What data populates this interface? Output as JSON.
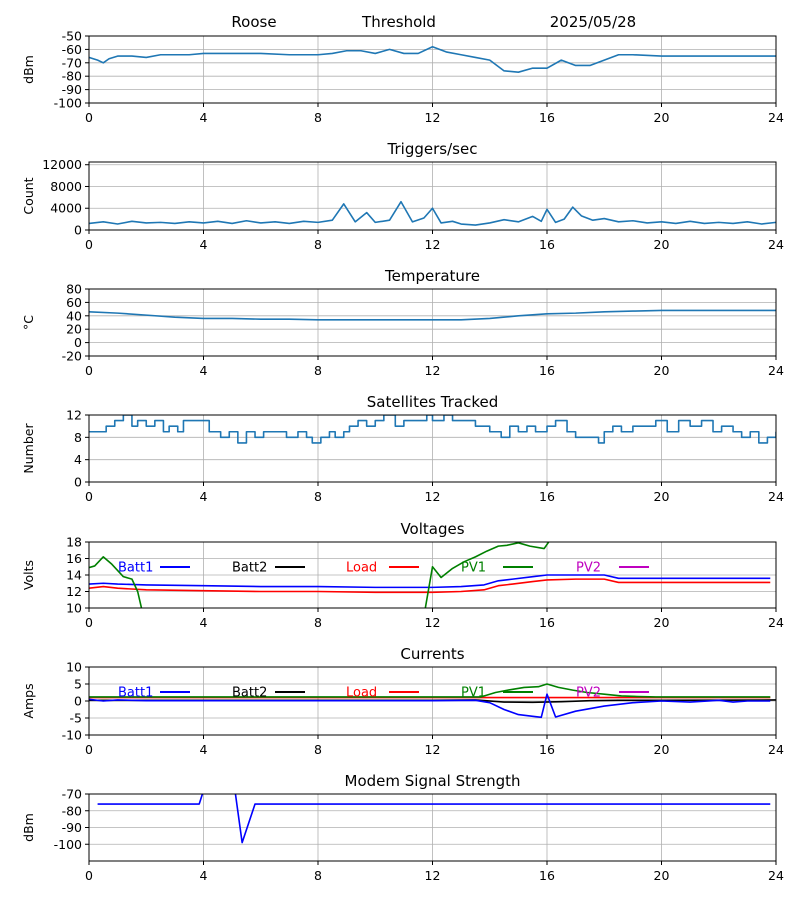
{
  "header": {
    "station": "Roose",
    "mode": "Threshold",
    "date": "2025/05/28"
  },
  "colors": {
    "series": "#1f77b4",
    "batt1": "#0000ff",
    "batt2": "#000000",
    "load": "#ff0000",
    "pv1": "#008000",
    "pv2": "#bf00bf",
    "grid": "#b0b0b0",
    "axis": "#000000"
  },
  "chart_data": [
    {
      "id": "signal",
      "type": "line",
      "title": "",
      "ylabel": "dBm",
      "xlim": [
        0,
        24
      ],
      "ylim": [
        -100,
        -50
      ],
      "xticks": [
        0,
        4,
        8,
        12,
        16,
        20,
        24
      ],
      "yticks": [
        -100,
        -90,
        -80,
        -70,
        -60,
        -50
      ],
      "grid": true,
      "series": [
        {
          "color": "#1f77b4",
          "x": [
            0,
            0.3,
            0.5,
            0.7,
            1.0,
            1.5,
            2,
            2.5,
            3,
            3.5,
            4,
            5,
            6,
            7,
            8,
            8.5,
            9,
            9.5,
            10,
            10.5,
            11,
            11.5,
            12,
            12.5,
            13,
            13.5,
            14,
            14.5,
            15,
            15.5,
            16,
            16.5,
            17,
            17.5,
            18,
            18.5,
            19,
            20,
            21,
            22,
            23,
            24
          ],
          "y": [
            -66,
            -68,
            -70,
            -67,
            -65,
            -65,
            -66,
            -64,
            -64,
            -64,
            -63,
            -63,
            -63,
            -64,
            -64,
            -63,
            -61,
            -61,
            -63,
            -60,
            -63,
            -63,
            -58,
            -62,
            -64,
            -66,
            -68,
            -76,
            -77,
            -74,
            -74,
            -68,
            -72,
            -72,
            -68,
            -64,
            -64,
            -65,
            -65,
            -65,
            -65,
            -65
          ]
        }
      ]
    },
    {
      "id": "triggers",
      "type": "line",
      "title": "Triggers/sec",
      "ylabel": "Count",
      "xlim": [
        0,
        24
      ],
      "ylim": [
        0,
        12500
      ],
      "xticks": [
        0,
        4,
        8,
        12,
        16,
        20,
        24
      ],
      "yticks": [
        0,
        4000,
        8000,
        12000
      ],
      "grid": true,
      "series": [
        {
          "color": "#1f77b4",
          "x": [
            0,
            0.5,
            1,
            1.5,
            2,
            2.5,
            3,
            3.5,
            4,
            4.5,
            5,
            5.5,
            6,
            6.5,
            7,
            7.5,
            8,
            8.5,
            8.9,
            9.3,
            9.7,
            10,
            10.5,
            10.9,
            11.3,
            11.7,
            12,
            12.3,
            12.7,
            13,
            13.5,
            14,
            14.5,
            15,
            15.5,
            15.8,
            16,
            16.3,
            16.6,
            16.9,
            17.2,
            17.6,
            18,
            18.5,
            19,
            19.5,
            20,
            20.5,
            21,
            21.5,
            22,
            22.5,
            23,
            23.5,
            24
          ],
          "y": [
            1200,
            1500,
            1100,
            1600,
            1300,
            1400,
            1200,
            1500,
            1300,
            1600,
            1200,
            1700,
            1300,
            1500,
            1200,
            1600,
            1400,
            1800,
            4800,
            1500,
            3200,
            1400,
            1800,
            5200,
            1500,
            2200,
            4000,
            1300,
            1600,
            1100,
            900,
            1300,
            1900,
            1500,
            2500,
            1600,
            3800,
            1400,
            2000,
            4200,
            2600,
            1800,
            2100,
            1500,
            1700,
            1300,
            1500,
            1200,
            1600,
            1200,
            1400,
            1200,
            1500,
            1100,
            1400
          ]
        }
      ]
    },
    {
      "id": "temperature",
      "type": "line",
      "title": "Temperature",
      "ylabel": "°C",
      "xlim": [
        0,
        24
      ],
      "ylim": [
        -20,
        80
      ],
      "xticks": [
        0,
        4,
        8,
        12,
        16,
        20,
        24
      ],
      "yticks": [
        -20,
        0,
        20,
        40,
        60,
        80
      ],
      "grid": true,
      "series": [
        {
          "color": "#1f77b4",
          "x": [
            0,
            1,
            2,
            3,
            4,
            5,
            6,
            7,
            8,
            9,
            10,
            11,
            12,
            13,
            14,
            15,
            16,
            17,
            18,
            19,
            20,
            21,
            22,
            23,
            24
          ],
          "y": [
            46,
            44,
            41,
            38,
            36,
            36,
            35,
            35,
            34,
            34,
            34,
            34,
            34,
            34,
            36,
            40,
            43,
            44,
            46,
            47,
            48,
            48,
            48,
            48,
            48
          ]
        }
      ]
    },
    {
      "id": "satellites",
      "type": "line",
      "title": "Satellites Tracked",
      "ylabel": "Number",
      "xlim": [
        0,
        24
      ],
      "ylim": [
        0,
        12
      ],
      "xticks": [
        0,
        4,
        8,
        12,
        16,
        20,
        24
      ],
      "yticks": [
        0,
        4,
        8,
        12
      ],
      "grid": true,
      "series": [
        {
          "color": "#1f77b4",
          "step": true,
          "x": [
            0,
            0.6,
            0.9,
            1.2,
            1.5,
            1.7,
            2.0,
            2.3,
            2.6,
            2.8,
            3.1,
            3.3,
            3.6,
            4.2,
            4.6,
            4.9,
            5.2,
            5.5,
            5.8,
            6.1,
            6.4,
            6.9,
            7.3,
            7.6,
            7.8,
            8.1,
            8.4,
            8.6,
            8.9,
            9.1,
            9.4,
            9.7,
            10.0,
            10.3,
            10.7,
            11.0,
            11.3,
            11.8,
            12.0,
            12.4,
            12.7,
            13.1,
            13.5,
            14.0,
            14.4,
            14.7,
            15.0,
            15.3,
            15.6,
            16.0,
            16.3,
            16.7,
            17.0,
            17.5,
            17.8,
            18.0,
            18.3,
            18.6,
            19.0,
            19.4,
            19.8,
            20.2,
            20.6,
            21.0,
            21.4,
            21.8,
            22.1,
            22.5,
            22.8,
            23.1,
            23.4,
            23.7,
            24
          ],
          "y": [
            9,
            10,
            11,
            12,
            10,
            11,
            10,
            11,
            9,
            10,
            9,
            11,
            11,
            9,
            8,
            9,
            7,
            9,
            8,
            9,
            9,
            8,
            9,
            8,
            7,
            8,
            9,
            8,
            9,
            10,
            11,
            10,
            11,
            12,
            10,
            11,
            11,
            12,
            11,
            12,
            11,
            11,
            10,
            9,
            8,
            10,
            9,
            10,
            9,
            10,
            11,
            9,
            8,
            8,
            7,
            9,
            10,
            9,
            10,
            10,
            11,
            9,
            11,
            10,
            11,
            9,
            10,
            9,
            8,
            9,
            7,
            8,
            9
          ]
        }
      ]
    },
    {
      "id": "voltages",
      "type": "line",
      "title": "Voltages",
      "ylabel": "Volts",
      "xlim": [
        0,
        24
      ],
      "ylim": [
        10,
        18
      ],
      "xticks": [
        0,
        4,
        8,
        12,
        16,
        20,
        24
      ],
      "yticks": [
        10,
        12,
        14,
        16,
        18
      ],
      "grid": true,
      "legend": [
        "Batt1",
        "Batt2",
        "Load",
        "PV1",
        "PV2"
      ],
      "series": [
        {
          "name": "Batt1",
          "color": "#0000ff",
          "x": [
            0,
            0.5,
            1,
            2,
            4,
            6,
            8,
            10,
            12,
            13,
            13.8,
            14.3,
            14.8,
            15.5,
            16,
            17,
            18,
            18.5,
            19,
            20,
            22,
            23.8
          ],
          "y": [
            12.9,
            13.0,
            12.9,
            12.8,
            12.7,
            12.6,
            12.6,
            12.5,
            12.5,
            12.6,
            12.8,
            13.3,
            13.5,
            13.8,
            14.0,
            14.0,
            14.0,
            13.6,
            13.6,
            13.6,
            13.6,
            13.6
          ]
        },
        {
          "name": "Load",
          "color": "#ff0000",
          "x": [
            0,
            0.5,
            1,
            2,
            4,
            6,
            8,
            10,
            12,
            13,
            13.8,
            14.3,
            14.8,
            15.5,
            16,
            17,
            18,
            18.5,
            19,
            20,
            22,
            23.8
          ],
          "y": [
            12.4,
            12.6,
            12.4,
            12.2,
            12.1,
            12.0,
            12.0,
            11.9,
            11.9,
            12.0,
            12.2,
            12.7,
            12.9,
            13.2,
            13.4,
            13.5,
            13.5,
            13.1,
            13.1,
            13.1,
            13.1,
            13.1
          ]
        },
        {
          "name": "PV1",
          "color": "#008000",
          "x": [
            0,
            0.2,
            0.5,
            0.8,
            1.2,
            1.5,
            1.7,
            1.9,
            11.7,
            12.0,
            12.3,
            12.7,
            13.1,
            13.5,
            13.9,
            14.3,
            14.6,
            15.0,
            15.4,
            15.9,
            16.1
          ],
          "y": [
            14.9,
            15.1,
            16.2,
            15.3,
            13.8,
            13.5,
            12.0,
            9.0,
            9.0,
            15.0,
            13.7,
            14.8,
            15.6,
            16.2,
            16.9,
            17.5,
            17.6,
            17.9,
            17.5,
            17.2,
            18.2
          ]
        }
      ]
    },
    {
      "id": "currents",
      "type": "line",
      "title": "Currents",
      "ylabel": "Amps",
      "xlim": [
        0,
        24
      ],
      "ylim": [
        -10,
        10
      ],
      "xticks": [
        0,
        4,
        8,
        12,
        16,
        20,
        24
      ],
      "yticks": [
        -10,
        -5,
        0,
        5,
        10
      ],
      "grid": true,
      "legend": [
        "Batt1",
        "Batt2",
        "Load",
        "PV1",
        "PV2"
      ],
      "series": [
        {
          "name": "Batt2",
          "color": "#000000",
          "x": [
            0,
            4,
            8,
            12,
            13.5,
            14.5,
            15.5,
            16.5,
            17.5,
            18.5,
            19.5,
            20,
            24
          ],
          "y": [
            0.2,
            0.2,
            0.2,
            0.2,
            0.3,
            -0.3,
            -0.4,
            -0.2,
            0.1,
            0.2,
            0.2,
            0.2,
            0.3
          ]
        },
        {
          "name": "Load",
          "color": "#ff0000",
          "x": [
            0,
            4,
            8,
            12,
            16,
            20,
            23.8
          ],
          "y": [
            1.0,
            1.0,
            1.0,
            1.0,
            1.0,
            1.0,
            1.0
          ]
        },
        {
          "name": "PV1",
          "color": "#008000",
          "x": [
            0,
            4,
            8,
            12,
            13.7,
            14.2,
            14.7,
            15.2,
            15.7,
            16.0,
            16.4,
            16.9,
            17.4,
            18.0,
            18.6,
            19.2,
            19.8,
            20.5,
            23.8
          ],
          "y": [
            1.2,
            1.2,
            1.2,
            1.2,
            1.2,
            2.5,
            3.3,
            4.0,
            4.2,
            5.0,
            4.0,
            3.2,
            2.5,
            2.0,
            1.5,
            1.3,
            1.2,
            1.2,
            1.2
          ]
        },
        {
          "name": "Batt1",
          "color": "#0000ff",
          "x": [
            0,
            0.5,
            1,
            2,
            4,
            8,
            12,
            13.5,
            14.0,
            14.5,
            15.0,
            15.5,
            15.8,
            16.0,
            16.3,
            17.0,
            18.0,
            19.0,
            20.0,
            21.0,
            22.0,
            22.5,
            23.0,
            23.8
          ],
          "y": [
            0.5,
            0.0,
            0.3,
            0.1,
            0.1,
            0.1,
            0.1,
            0.2,
            -0.5,
            -2.5,
            -4.0,
            -4.5,
            -4.8,
            2.0,
            -4.7,
            -3.0,
            -1.5,
            -0.5,
            0.0,
            -0.3,
            0.2,
            -0.3,
            0.0,
            0.0
          ]
        }
      ]
    },
    {
      "id": "modem",
      "type": "line",
      "title": "Modem Signal Strength",
      "ylabel": "dBm",
      "xlim": [
        0,
        24
      ],
      "ylim": [
        -110,
        -70
      ],
      "xticks": [
        0,
        4,
        8,
        12,
        16,
        20,
        24
      ],
      "yticks": [
        -100,
        -90,
        -80,
        -70
      ],
      "grid": true,
      "series": [
        {
          "color": "#0000ff",
          "x": [
            0.3,
            3.85,
            4.0,
            4.0,
            5.1,
            5.35,
            5.8,
            23.8
          ],
          "y": [
            -76,
            -76,
            -68,
            null,
            -68,
            -99,
            -76,
            -76
          ]
        }
      ]
    }
  ]
}
